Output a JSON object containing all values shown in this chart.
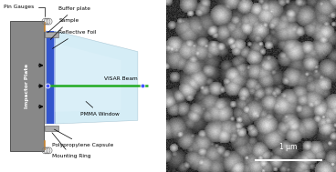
{
  "fig_width": 3.68,
  "fig_height": 1.89,
  "dpi": 100,
  "colors": {
    "impactor_gray": "#888888",
    "impactor_dark": "#555555",
    "blue_layer": "#3355cc",
    "blue_layer_light": "#99aaee",
    "silver_layer": "#b0b8c8",
    "window_fill": "#c8e8f4",
    "window_fill_light": "#dff2fa",
    "green_beam": "#22aa22",
    "blue_dot": "#4455ff",
    "orange_pin": "#cc8833",
    "background": "#ffffff",
    "dark_layer": "#444466",
    "mount_gray": "#aaaaaa"
  },
  "labels": {
    "pin_gauges": "Pin Gauges",
    "buffer_plate": "Buffer plate",
    "sample": "Sample",
    "reflective_foil": "Reflective Foil",
    "visar_beam": "VISAR Beam",
    "pmma_window": "PMMA Window",
    "polypropylene_capsule": "Polypropylene Capsule",
    "mounting_ring": "Mounting Ring",
    "impactor_plate": "Impactor Plate"
  },
  "font_size": 4.2
}
